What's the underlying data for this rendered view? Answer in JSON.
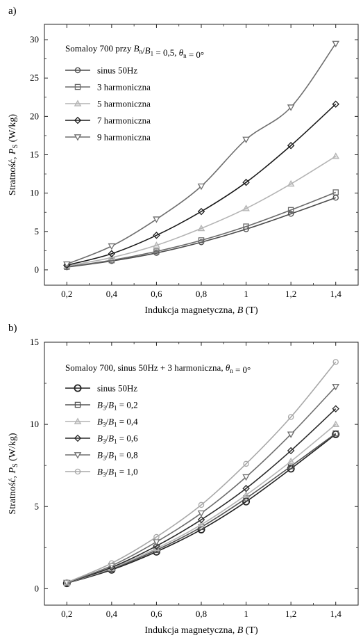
{
  "chart_data": [
    {
      "panel_label": "a)",
      "type": "line",
      "legend_title": "Somaloy 700 przy Bn/B1 = 0,5, θn = 0°",
      "xlabel": "Indukcja magnetyczna, B (T)",
      "ylabel": "Stratność, PS (W/kg)",
      "xlim": [
        0.1,
        1.5
      ],
      "ylim": [
        -2,
        32
      ],
      "x_ticks": [
        "0,2",
        "0,4",
        "0,6",
        "0,8",
        "1",
        "1,2",
        "1,4"
      ],
      "y_ticks": [
        "0",
        "5",
        "10",
        "15",
        "20",
        "25",
        "30"
      ],
      "legend_position": "top-left",
      "x": [
        0.2,
        0.4,
        0.6,
        0.8,
        1.0,
        1.2,
        1.4
      ],
      "series": [
        {
          "name": "sinus 50Hz",
          "marker": "circle",
          "color": "#4a4a4a",
          "values": [
            0.35,
            1.15,
            2.2,
            3.6,
            5.3,
            7.3,
            9.4
          ]
        },
        {
          "name": "3 harmoniczna",
          "marker": "square",
          "color": "#6a6a6a",
          "values": [
            0.4,
            1.25,
            2.4,
            3.85,
            5.65,
            7.8,
            10.1
          ]
        },
        {
          "name": "5 harmoniczna",
          "marker": "triangle-up",
          "color": "#b4b4b4",
          "values": [
            0.5,
            1.6,
            3.2,
            5.4,
            8.0,
            11.2,
            14.8
          ]
        },
        {
          "name": "7 harmoniczna",
          "marker": "diamond",
          "color": "#1a1a1a",
          "values": [
            0.6,
            2.1,
            4.5,
            7.6,
            11.4,
            16.2,
            21.6
          ]
        },
        {
          "name": "9 harmoniczna",
          "marker": "triangle-down",
          "color": "#6e6e6e",
          "values": [
            0.75,
            3.1,
            6.6,
            10.9,
            17.0,
            21.2,
            29.5
          ]
        }
      ]
    },
    {
      "panel_label": "b)",
      "type": "line",
      "legend_title": "Somaloy 700, sinus 50Hz + 3 harmoniczna, θn = 0°",
      "xlabel": "Indukcja magnetyczna, B (T)",
      "ylabel": "Stratność, PS (W/kg)",
      "xlim": [
        0.1,
        1.5
      ],
      "ylim": [
        -1,
        15
      ],
      "x_ticks": [
        "0,2",
        "0,4",
        "0,6",
        "0,8",
        "1",
        "1,2",
        "1,4"
      ],
      "y_ticks": [
        "0",
        "5",
        "10",
        "15"
      ],
      "legend_position": "top-left",
      "x": [
        0.2,
        0.4,
        0.6,
        0.8,
        1.0,
        1.2,
        1.4
      ],
      "series": [
        {
          "name": "sinus 50Hz",
          "marker": "circle-large",
          "color": "#222222",
          "values": [
            0.33,
            1.15,
            2.25,
            3.6,
            5.3,
            7.3,
            9.4
          ]
        },
        {
          "name": "B3/B1 = 0,2",
          "marker": "square",
          "color": "#555555",
          "values": [
            0.34,
            1.2,
            2.35,
            3.75,
            5.5,
            7.45,
            9.45
          ]
        },
        {
          "name": "B3/B1 = 0,4",
          "marker": "triangle-up",
          "color": "#b4b4b4",
          "values": [
            0.35,
            1.25,
            2.45,
            3.9,
            5.7,
            7.75,
            10.0
          ]
        },
        {
          "name": "B3/B1 = 0,6",
          "marker": "diamond",
          "color": "#2a2a2a",
          "values": [
            0.36,
            1.3,
            2.6,
            4.2,
            6.1,
            8.4,
            10.95
          ]
        },
        {
          "name": "B3/B1 = 0,8",
          "marker": "triangle-down",
          "color": "#6e6e6e",
          "values": [
            0.37,
            1.4,
            2.85,
            4.6,
            6.8,
            9.4,
            12.3
          ]
        },
        {
          "name": "B3/B1 = 1,0",
          "marker": "circle",
          "color": "#a8a8a8",
          "values": [
            0.38,
            1.55,
            3.15,
            5.1,
            7.6,
            10.45,
            13.8
          ]
        }
      ]
    }
  ]
}
